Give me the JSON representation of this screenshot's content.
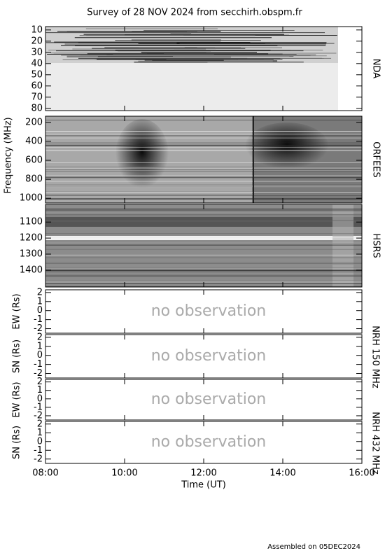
{
  "title": "Survey of 28 NOV 2024 from secchirh.obspm.fr",
  "footer": "Assembled on 05DEC2024",
  "frequency_label": "Frequency (MHz)",
  "nrh_labels": [
    "NRH 150 MHz",
    "NRH 432 MHz"
  ],
  "xlabel": "Time (UT)",
  "xlim": [
    8,
    16
  ],
  "xticks": [
    {
      "value": 8,
      "label": "08:00"
    },
    {
      "value": 10,
      "label": "10:00"
    },
    {
      "value": 12,
      "label": "12:00"
    },
    {
      "value": 14,
      "label": "14:00"
    },
    {
      "value": 16,
      "label": "16:00"
    }
  ],
  "chart_data": [
    {
      "type": "spectrogram",
      "label": "NDA",
      "ylim": [
        82,
        7
      ],
      "yticks": [
        10,
        20,
        30,
        40,
        50,
        60,
        70,
        80
      ]
    },
    {
      "type": "spectrogram",
      "label": "ORFEES",
      "ylim": [
        1050,
        135
      ],
      "yticks": [
        200,
        400,
        600,
        800,
        1000
      ]
    },
    {
      "type": "spectrogram",
      "label": "HSRS",
      "ylim": [
        1505,
        990
      ],
      "yticks": [
        1100,
        1200,
        1300,
        1400
      ]
    },
    {
      "type": "empty",
      "ylabel": "EW (Rs)",
      "annotation": "no observation",
      "ylim": [
        -2.5,
        2.3
      ],
      "yticks": [
        -2,
        -1,
        0,
        1,
        2
      ]
    },
    {
      "type": "empty",
      "ylabel": "SN (Rs)",
      "annotation": "no observation",
      "ylim": [
        -2.5,
        2.3
      ],
      "yticks": [
        -2,
        -1,
        0,
        1,
        2
      ]
    },
    {
      "type": "empty",
      "ylabel": "EW (Rs)",
      "annotation": "no observation",
      "ylim": [
        -2.5,
        2.3
      ],
      "yticks": [
        -2,
        -1,
        0,
        1,
        2
      ]
    },
    {
      "type": "empty",
      "ylabel": "SN (Rs)",
      "annotation": "no observation",
      "ylim": [
        -2.5,
        2.3
      ],
      "yticks": [
        -2,
        -1,
        0,
        1,
        2
      ]
    }
  ]
}
